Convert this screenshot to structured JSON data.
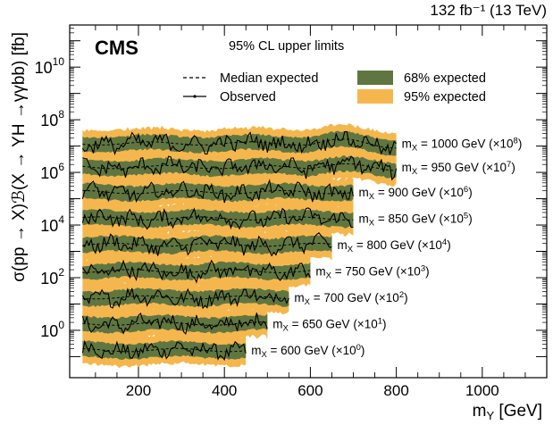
{
  "chart_data": {
    "type": "line",
    "title": "95% CL upper limits",
    "experiment": "CMS",
    "lumi_label": "132 fb⁻¹ (13 TeV)",
    "xlabel": "m_Y [GeV]",
    "ylabel": "σ(pp → X)ℬ(X → YH →γγbb) [fb]",
    "xlim": [
      40,
      1150
    ],
    "ylim_log10": [
      -1.8,
      11.6
    ],
    "x_ticks": [
      200,
      400,
      600,
      800,
      1000
    ],
    "x_tick_labels": [
      "200",
      "400",
      "600",
      "800",
      "1000"
    ],
    "y_ticks_log10": [
      0,
      2,
      4,
      6,
      8,
      10
    ],
    "y_tick_labels": [
      {
        "base": "10",
        "exp": "0"
      },
      {
        "base": "10",
        "exp": "2"
      },
      {
        "base": "10",
        "exp": "4"
      },
      {
        "base": "10",
        "exp": "6"
      },
      {
        "base": "10",
        "exp": "8"
      },
      {
        "base": "10",
        "exp": "10"
      }
    ],
    "legend": {
      "median": "Median expected",
      "observed": "Observed",
      "band68": "68% expected",
      "band95": "95% expected"
    },
    "colors": {
      "band68": "#607641",
      "band95": "#f5b74d",
      "line": "#000000"
    },
    "series": [
      {
        "mx": 600,
        "label_main": "m",
        "label_sub": "X",
        "label_rest": " = 600 GeV (×10",
        "label_exp": "0",
        "label_end": ")",
        "x_max": 450,
        "median_log10": -0.75
      },
      {
        "mx": 650,
        "label_main": "m",
        "label_sub": "X",
        "label_rest": " = 650 GeV (×10",
        "label_exp": "1",
        "label_end": ")",
        "x_max": 500,
        "median_log10": 0.25
      },
      {
        "mx": 700,
        "label_main": "m",
        "label_sub": "X",
        "label_rest": " = 700 GeV (×10",
        "label_exp": "2",
        "label_end": ")",
        "x_max": 550,
        "median_log10": 1.25
      },
      {
        "mx": 750,
        "label_main": "m",
        "label_sub": "X",
        "label_rest": " = 750 GeV (×10",
        "label_exp": "3",
        "label_end": ")",
        "x_max": 600,
        "median_log10": 2.25
      },
      {
        "mx": 800,
        "label_main": "m",
        "label_sub": "X",
        "label_rest": " = 800 GeV (×10",
        "label_exp": "4",
        "label_end": ")",
        "x_max": 650,
        "median_log10": 3.25
      },
      {
        "mx": 850,
        "label_main": "m",
        "label_sub": "X",
        "label_rest": " = 850 GeV (×10",
        "label_exp": "5",
        "label_end": ")",
        "x_max": 700,
        "median_log10": 4.25
      },
      {
        "mx": 900,
        "label_main": "m",
        "label_sub": "X",
        "label_rest": " = 900 GeV (×10",
        "label_exp": "6",
        "label_end": ")",
        "x_max": 700,
        "median_log10": 5.25
      },
      {
        "mx": 950,
        "label_main": "m",
        "label_sub": "X",
        "label_rest": " = 950 GeV (×10",
        "label_exp": "7",
        "label_end": ")",
        "x_max": 800,
        "median_log10": 6.2
      },
      {
        "mx": 1000,
        "label_main": "m",
        "label_sub": "X",
        "label_rest": " = 1000 GeV (×10",
        "label_exp": "8",
        "label_end": ")",
        "x_max": 800,
        "median_log10": 7.1
      }
    ],
    "x_min": 70,
    "band68_halfwidth_log10": 0.28,
    "band95_halfwidth_log10": 0.55
  }
}
